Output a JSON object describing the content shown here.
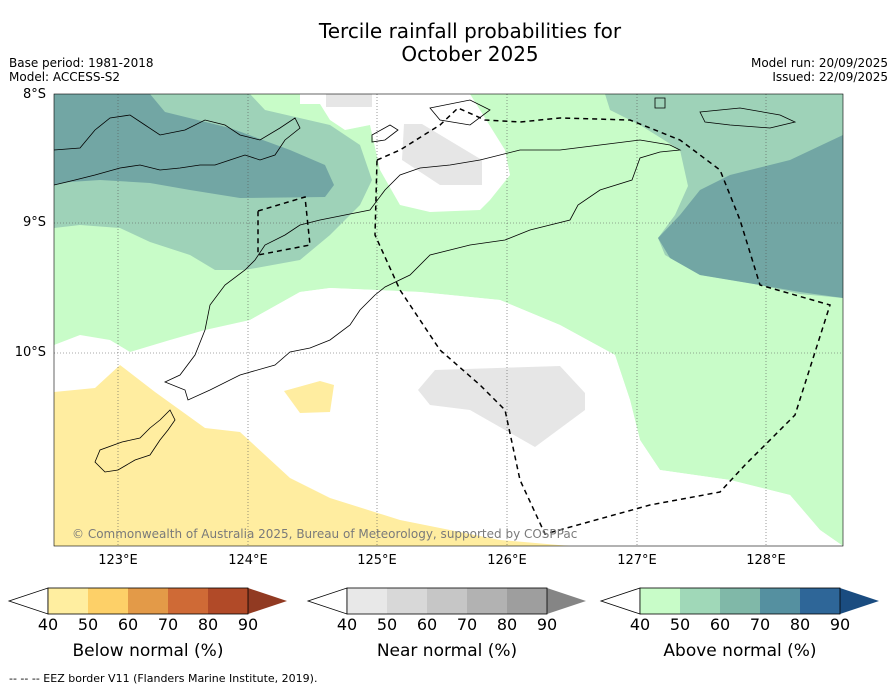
{
  "title_line1": "Tercile rainfall probabilities for",
  "title_line2": "October 2025",
  "meta_left": {
    "base_period": "Base period: 1981-2018",
    "model": "Model: ACCESS-S2"
  },
  "meta_right": {
    "model_run": "Model run: 20/09/2025",
    "issued": "Issued: 22/09/2025"
  },
  "lat_labels": [
    "8°S",
    "9°S",
    "10°S"
  ],
  "lon_labels": [
    "123°E",
    "124°E",
    "125°E",
    "126°E",
    "127°E",
    "128°E"
  ],
  "copyright": "© Commonwealth of Australia 2025, Bureau of Meteorology, supported by COSPPac",
  "colorbars": {
    "below": {
      "title": "Below normal (%)",
      "ticks": [
        "40",
        "50",
        "60",
        "70",
        "80",
        "90"
      ],
      "colors": [
        "#ffeea0",
        "#fdd068",
        "#e39a48",
        "#cf6a36",
        "#b14a28",
        "#913a22"
      ]
    },
    "near": {
      "title": "Near normal (%)",
      "ticks": [
        "40",
        "50",
        "60",
        "70",
        "80",
        "90"
      ],
      "colors": [
        "#e8e8e8",
        "#d8d8d8",
        "#c6c6c6",
        "#b2b2b2",
        "#9e9e9e",
        "#858585"
      ]
    },
    "above": {
      "title": "Above normal (%)",
      "ticks": [
        "40",
        "50",
        "60",
        "70",
        "80",
        "90"
      ],
      "colors": [
        "#c8fcc8",
        "#a0d8b8",
        "#80b8a8",
        "#5590a0",
        "#2e6698",
        "#1a4c80"
      ]
    }
  },
  "footer": "--  --  -- EEZ border V11 (Flanders Marine Institute, 2019).",
  "legend": {
    "above_40_50": "#c8fcc8",
    "above_50_60": "#9ed2b8",
    "above_60_70": "#72a6a4",
    "near_40_50": "#e6e6e6",
    "below_40_50": "#ffeda0"
  }
}
